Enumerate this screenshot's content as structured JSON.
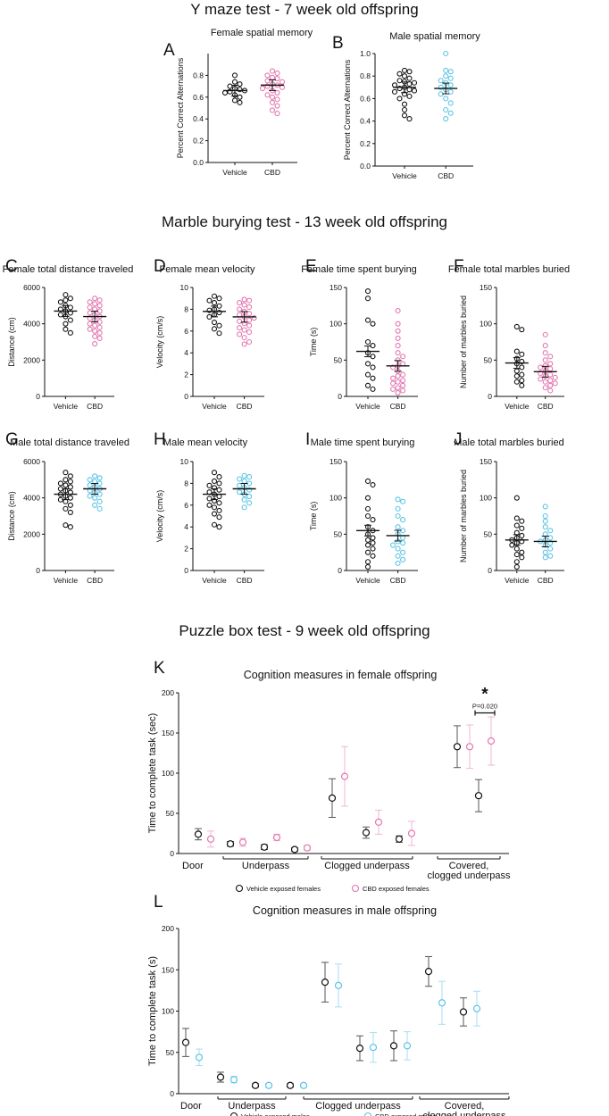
{
  "sections": [
    {
      "title": "Y maze test - 7 week old offspring"
    },
    {
      "title": "Marble burying test - 13 week old offspring"
    },
    {
      "title": "Puzzle box test - 9 week old offspring"
    }
  ],
  "colors": {
    "vehicle": "#111111",
    "cbd_female": "#e377b0",
    "cbd_male": "#5bc4e6"
  },
  "chart_data": [
    {
      "id": "A",
      "type": "scatter",
      "title": "Female spatial memory",
      "ylabel": "Percent Correct Alternations",
      "categories": [
        "Vehicle",
        "CBD"
      ],
      "ylim": [
        0,
        1.0
      ],
      "ticks": [
        0.0,
        0.2,
        0.4,
        0.6,
        0.8
      ],
      "tick_labels": [
        "0.0",
        "0.2",
        "0.4",
        "0.6",
        "0.8"
      ],
      "group_colors": [
        "vehicle",
        "cbd_female"
      ],
      "points": [
        [
          0.8,
          0.74,
          0.72,
          0.7,
          0.68,
          0.67,
          0.66,
          0.65,
          0.64,
          0.62,
          0.6,
          0.57,
          0.55
        ],
        [
          0.84,
          0.82,
          0.8,
          0.78,
          0.77,
          0.75,
          0.74,
          0.72,
          0.71,
          0.7,
          0.69,
          0.68,
          0.66,
          0.64,
          0.62,
          0.6,
          0.58,
          0.55,
          0.52,
          0.48,
          0.45
        ]
      ],
      "means": [
        0.66,
        0.71
      ]
    },
    {
      "id": "B",
      "type": "scatter",
      "title": "Male spatial memory",
      "ylabel": "Percent Correct Alternations",
      "categories": [
        "Vehicle",
        "CBD"
      ],
      "ylim": [
        0,
        1.0
      ],
      "ticks": [
        0.0,
        0.2,
        0.4,
        0.6,
        0.8,
        1.0
      ],
      "tick_labels": [
        "0.0",
        "0.2",
        "0.4",
        "0.6",
        "0.8",
        "1.0"
      ],
      "group_colors": [
        "vehicle",
        "cbd_male"
      ],
      "points": [
        [
          0.85,
          0.84,
          0.82,
          0.8,
          0.78,
          0.76,
          0.75,
          0.74,
          0.73,
          0.72,
          0.7,
          0.69,
          0.68,
          0.67,
          0.66,
          0.64,
          0.62,
          0.6,
          0.55,
          0.5,
          0.45,
          0.42
        ],
        [
          1.0,
          0.85,
          0.84,
          0.8,
          0.78,
          0.76,
          0.74,
          0.72,
          0.7,
          0.68,
          0.66,
          0.64,
          0.6,
          0.56,
          0.5,
          0.47,
          0.42
        ]
      ],
      "means": [
        0.7,
        0.69
      ]
    },
    {
      "id": "C",
      "type": "scatter",
      "title": "Female total distance traveled",
      "ylabel": "Distance (cm)",
      "categories": [
        "Vehicle",
        "CBD"
      ],
      "ylim": [
        0,
        6000
      ],
      "ticks": [
        0,
        2000,
        4000,
        6000
      ],
      "tick_labels": [
        "0",
        "2000",
        "4000",
        "6000"
      ],
      "group_colors": [
        "vehicle",
        "cbd_female"
      ],
      "points": [
        [
          5600,
          5400,
          5300,
          5200,
          5000,
          4900,
          4800,
          4700,
          4600,
          4500,
          4400,
          4200,
          4000,
          3700,
          3500
        ],
        [
          5400,
          5300,
          5200,
          5100,
          5000,
          4900,
          4800,
          4700,
          4600,
          4500,
          4400,
          4300,
          4200,
          4100,
          4000,
          3900,
          3800,
          3700,
          3600,
          3500,
          3300,
          3200,
          2900
        ]
      ],
      "means": [
        4700,
        4400
      ]
    },
    {
      "id": "D",
      "type": "scatter",
      "title": "Female mean velocity",
      "ylabel": "Velocity (cm/s)",
      "categories": [
        "Vehicle",
        "CBD"
      ],
      "ylim": [
        0,
        10
      ],
      "ticks": [
        0,
        2,
        4,
        6,
        8,
        10
      ],
      "tick_labels": [
        "0",
        "2",
        "4",
        "6",
        "8",
        "10"
      ],
      "group_colors": [
        "vehicle",
        "cbd_female"
      ],
      "points": [
        [
          9.2,
          9.0,
          8.8,
          8.6,
          8.3,
          8.0,
          7.9,
          7.7,
          7.5,
          7.3,
          6.8,
          6.5,
          6.2,
          5.8
        ],
        [
          8.9,
          8.8,
          8.6,
          8.4,
          8.2,
          8.0,
          7.8,
          7.6,
          7.5,
          7.3,
          7.2,
          7.0,
          6.9,
          6.7,
          6.5,
          6.3,
          6.1,
          5.9,
          5.7,
          5.4,
          5.0,
          4.8
        ]
      ],
      "means": [
        7.8,
        7.3
      ]
    },
    {
      "id": "E",
      "type": "scatter",
      "title": "Female time spent burying",
      "ylabel": "Time (s)",
      "categories": [
        "Vehicle",
        "CBD"
      ],
      "ylim": [
        0,
        150
      ],
      "ticks": [
        0,
        50,
        100,
        150
      ],
      "tick_labels": [
        "0",
        "50",
        "100",
        "150"
      ],
      "group_colors": [
        "vehicle",
        "cbd_female"
      ],
      "points": [
        [
          145,
          135,
          105,
          100,
          75,
          70,
          60,
          55,
          45,
          40,
          30,
          25,
          15,
          10
        ],
        [
          118,
          100,
          90,
          80,
          70,
          60,
          55,
          50,
          45,
          42,
          40,
          35,
          30,
          28,
          25,
          22,
          20,
          18,
          15,
          12,
          10,
          8,
          5
        ]
      ],
      "means": [
        62,
        42
      ]
    },
    {
      "id": "F",
      "type": "scatter",
      "title": "Female total marbles buried",
      "ylabel": "Number of marbles buried",
      "categories": [
        "Vehicle",
        "CBD"
      ],
      "ylim": [
        0,
        150
      ],
      "ticks": [
        0,
        50,
        100,
        150
      ],
      "tick_labels": [
        "0",
        "50",
        "100",
        "150"
      ],
      "group_colors": [
        "vehicle",
        "cbd_female"
      ],
      "points": [
        [
          96,
          92,
          62,
          58,
          52,
          48,
          45,
          40,
          35,
          30,
          28,
          22,
          20,
          15
        ],
        [
          85,
          70,
          60,
          55,
          50,
          45,
          42,
          40,
          38,
          35,
          32,
          30,
          28,
          26,
          24,
          22,
          20,
          18,
          15,
          12,
          8
        ]
      ],
      "means": [
        46,
        34
      ]
    },
    {
      "id": "G",
      "type": "scatter",
      "title": "Male total distance traveled",
      "ylabel": "Distance (cm)",
      "categories": [
        "Vehicle",
        "CBD"
      ],
      "ylim": [
        0,
        6000
      ],
      "ticks": [
        0,
        2000,
        4000,
        6000
      ],
      "tick_labels": [
        "0",
        "2000",
        "4000",
        "6000"
      ],
      "group_colors": [
        "vehicle",
        "cbd_male"
      ],
      "points": [
        [
          5400,
          5200,
          5000,
          4900,
          4800,
          4700,
          4600,
          4500,
          4400,
          4300,
          4200,
          4100,
          4000,
          3900,
          3800,
          3600,
          3400,
          3200,
          2500,
          2400
        ],
        [
          5200,
          5100,
          5000,
          4900,
          4800,
          4700,
          4600,
          4500,
          4400,
          4300,
          4200,
          4100,
          4000,
          3800,
          3600,
          3400
        ]
      ],
      "means": [
        4200,
        4500
      ]
    },
    {
      "id": "H",
      "type": "scatter",
      "title": "Male mean velocity",
      "ylabel": "Velocity (cm/s)",
      "categories": [
        "Vehicle",
        "CBD"
      ],
      "ylim": [
        0,
        10
      ],
      "ticks": [
        0,
        2,
        4,
        6,
        8,
        10
      ],
      "tick_labels": [
        "0",
        "2",
        "4",
        "6",
        "8",
        "10"
      ],
      "group_colors": [
        "vehicle",
        "cbd_male"
      ],
      "points": [
        [
          9.0,
          8.6,
          8.2,
          8.0,
          7.8,
          7.6,
          7.4,
          7.2,
          7.0,
          6.8,
          6.6,
          6.4,
          6.2,
          6.0,
          5.8,
          5.5,
          5.2,
          4.9,
          4.2,
          4.0
        ],
        [
          8.7,
          8.6,
          8.4,
          8.2,
          8.0,
          7.8,
          7.6,
          7.4,
          7.2,
          7.0,
          6.8,
          6.5,
          6.2,
          5.8
        ]
      ],
      "means": [
        7.0,
        7.5
      ]
    },
    {
      "id": "I",
      "type": "scatter",
      "title": "Male time spent burying",
      "ylabel": "Time (s)",
      "categories": [
        "Vehicle",
        "CBD"
      ],
      "ylim": [
        0,
        150
      ],
      "ticks": [
        0,
        50,
        100,
        150
      ],
      "tick_labels": [
        "0",
        "50",
        "100",
        "150"
      ],
      "group_colors": [
        "vehicle",
        "cbd_male"
      ],
      "points": [
        [
          123,
          118,
          100,
          85,
          75,
          70,
          60,
          55,
          50,
          45,
          42,
          38,
          35,
          30,
          25,
          20,
          12,
          5
        ],
        [
          98,
          95,
          85,
          75,
          70,
          60,
          55,
          50,
          45,
          40,
          38,
          35,
          30,
          25,
          20,
          15,
          10
        ]
      ],
      "means": [
        55,
        48
      ]
    },
    {
      "id": "J",
      "type": "scatter",
      "title": "Male total marbles buried",
      "ylabel": "Number of marbles buried",
      "categories": [
        "Vehicle",
        "CBD"
      ],
      "ylim": [
        0,
        150
      ],
      "ticks": [
        0,
        50,
        100,
        150
      ],
      "tick_labels": [
        "0",
        "50",
        "100",
        "150"
      ],
      "group_colors": [
        "vehicle",
        "cbd_male"
      ],
      "points": [
        [
          100,
          72,
          68,
          62,
          58,
          52,
          48,
          45,
          42,
          40,
          38,
          35,
          30,
          25,
          22,
          18,
          12,
          5
        ],
        [
          88,
          75,
          68,
          60,
          55,
          50,
          45,
          42,
          40,
          38,
          35,
          30,
          25,
          20,
          18
        ]
      ],
      "means": [
        42,
        40
      ]
    },
    {
      "id": "K",
      "type": "scatter",
      "title": "Cognition measures in female offspring",
      "ylabel": "Time to complete task (sec)",
      "ylim": [
        0,
        200
      ],
      "ticks": [
        0,
        50,
        100,
        150,
        200
      ],
      "tick_labels": [
        "0",
        "50",
        "100",
        "150",
        "200"
      ],
      "groups": [
        "Door",
        "Underpass",
        "Clogged underpass",
        "Covered, clogged underpass"
      ],
      "legend": [
        "Vehicle exposed females",
        "CBD exposed females"
      ],
      "series": [
        {
          "name": "Vehicle exposed females",
          "color": "vehicle",
          "values": [
            24,
            12,
            8,
            5,
            69,
            26,
            18,
            133,
            72
          ],
          "err": [
            7,
            3,
            3,
            2,
            24,
            7,
            4,
            26,
            20
          ]
        },
        {
          "name": "CBD exposed females",
          "color": "cbd_female",
          "values": [
            18,
            14,
            20,
            7,
            96,
            39,
            25,
            133,
            140
          ],
          "err": [
            10,
            5,
            4,
            3,
            37,
            15,
            15,
            27,
            30
          ]
        }
      ],
      "annotation": {
        "star": "*",
        "pvalue": "P=0.020"
      }
    },
    {
      "id": "L",
      "type": "scatter",
      "title": "Cognition measures in male offspring",
      "ylabel": "Time to complete task (s)",
      "ylim": [
        0,
        200
      ],
      "ticks": [
        0,
        50,
        100,
        150,
        200
      ],
      "tick_labels": [
        "0",
        "50",
        "100",
        "150",
        "200"
      ],
      "groups": [
        "Door",
        "Underpass",
        "Clogged underpass",
        "Covered, clogged underpass"
      ],
      "legend": [
        "Vehicle exposed males",
        "CBD exposed males"
      ],
      "series": [
        {
          "name": "Vehicle exposed males",
          "color": "vehicle",
          "values": [
            62,
            20,
            10,
            10,
            135,
            55,
            58,
            148,
            99
          ],
          "err": [
            17,
            6,
            2,
            2,
            24,
            15,
            18,
            18,
            17
          ]
        },
        {
          "name": "CBD exposed males",
          "color": "cbd_male",
          "values": [
            44,
            17,
            10,
            10,
            131,
            56,
            58,
            110,
            103
          ],
          "err": [
            10,
            4,
            2,
            2,
            26,
            18,
            17,
            26,
            21
          ]
        }
      ]
    }
  ]
}
